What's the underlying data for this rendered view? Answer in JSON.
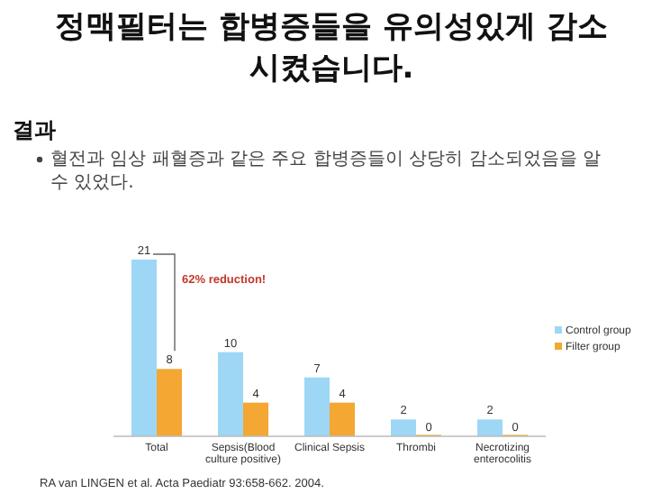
{
  "chart_data": {
    "type": "bar",
    "title": "정맥필터는 합병증들을 유의성있게 감소시켰습니다.",
    "subtitle": "결과",
    "categories": [
      "Total",
      "Sepsis(Blood culture positive)",
      "Clinical Sepsis",
      "Thrombi",
      "Necrotizing enterocolitis"
    ],
    "series": [
      {
        "name": "Control group",
        "color": "#9dd7f5",
        "values": [
          21,
          10,
          7,
          2,
          2
        ]
      },
      {
        "name": "Filter group",
        "color": "#f4a733",
        "values": [
          8,
          4,
          4,
          0,
          0
        ]
      }
    ],
    "data_labels": true,
    "legend": "right",
    "annotations": [
      "혈전과 임상 패혈증과 같은 주요 합병증들이 상당히 감소되었음을 알 수 있었다.",
      {
        "text": "62% reduction!",
        "x": "Total",
        "y": 21
      },
      "RA van LINGEN et al. Acta Paediatr 93:658-662. 2004."
    ]
  }
}
